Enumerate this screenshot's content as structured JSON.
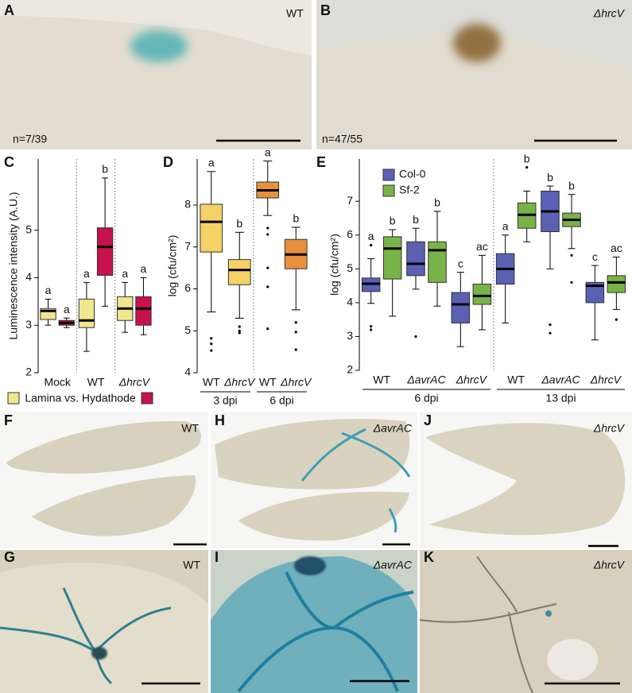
{
  "photos": [
    {
      "letter": "A",
      "label": "WT",
      "note": "n=7/39"
    },
    {
      "letter": "B",
      "label": "ΔhrcV",
      "note": "n=47/55"
    },
    {
      "letter": "F",
      "label": "WT"
    },
    {
      "letter": "H",
      "label": "ΔavrAC"
    },
    {
      "letter": "J",
      "label": "ΔhrcV"
    },
    {
      "letter": "G",
      "label": "WT"
    },
    {
      "letter": "I",
      "label": "ΔavrAC"
    },
    {
      "letter": "K",
      "label": "ΔhrcV"
    }
  ],
  "chart_data": [
    {
      "type": "box",
      "panel": "C",
      "y_label": "Luminescence intensity (A.U.)",
      "ylim": [
        2,
        6.5
      ],
      "yticks": [
        2,
        3,
        4,
        5
      ],
      "legend": {
        "text": "Lamina vs. Hydathode",
        "colors": [
          "#f0e68c",
          "#c8124c"
        ]
      },
      "groups": [
        {
          "categories": [
            {
              "label": "Mock",
              "boxes": [
                {
                  "color": "#f0e68c",
                  "min": 3.0,
                  "q1": 3.12,
                  "median": 3.3,
                  "q3": 3.35,
                  "max": 3.55,
                  "letter": "a"
                },
                {
                  "color": "#c8124c",
                  "min": 2.95,
                  "q1": 3.0,
                  "median": 3.05,
                  "q3": 3.1,
                  "max": 3.15,
                  "letter": "a"
                }
              ]
            }
          ]
        },
        {
          "categories": [
            {
              "label": "WT",
              "boxes": [
                {
                  "color": "#f0e68c",
                  "min": 2.45,
                  "q1": 2.95,
                  "median": 3.1,
                  "q3": 3.55,
                  "max": 3.9,
                  "letter": "a"
                },
                {
                  "color": "#c8124c",
                  "min": 3.4,
                  "q1": 4.05,
                  "median": 4.65,
                  "q3": 5.05,
                  "max": 6.1,
                  "letter": "b"
                }
              ]
            }
          ]
        },
        {
          "categories": [
            {
              "label": "ΔhrcV",
              "boxes": [
                {
                  "color": "#f0e68c",
                  "min": 2.85,
                  "q1": 3.1,
                  "median": 3.35,
                  "q3": 3.6,
                  "max": 3.9,
                  "letter": "a"
                },
                {
                  "color": "#c8124c",
                  "min": 2.8,
                  "q1": 3.0,
                  "median": 3.35,
                  "q3": 3.6,
                  "max": 4.0,
                  "letter": "a"
                }
              ]
            }
          ]
        }
      ]
    },
    {
      "type": "box",
      "panel": "D",
      "y_label": "log (cfu/cm²)",
      "ylim": [
        4,
        9.1
      ],
      "yticks": [
        4,
        5,
        6,
        7,
        8
      ],
      "groups": [
        {
          "label": "3 dpi",
          "categories": [
            {
              "label": "WT",
              "boxes": [
                {
                  "color": "#f5d166",
                  "min": 5.45,
                  "q1": 6.88,
                  "median": 7.6,
                  "q3": 8.02,
                  "max": 8.8,
                  "outliers": [
                    4.82,
                    4.69,
                    4.53
                  ],
                  "letter": "a"
                }
              ]
            },
            {
              "label": "ΔhrcV",
              "boxes": [
                {
                  "color": "#f5d166",
                  "min": 5.3,
                  "q1": 6.1,
                  "median": 6.45,
                  "q3": 6.7,
                  "max": 7.35,
                  "outliers": [
                    5.1,
                    5.0,
                    4.95
                  ],
                  "letter": "b"
                }
              ]
            }
          ]
        },
        {
          "label": "6 dpi",
          "categories": [
            {
              "label": "WT",
              "boxes": [
                {
                  "color": "#e8903c",
                  "min": 7.75,
                  "q1": 8.17,
                  "median": 8.35,
                  "q3": 8.55,
                  "max": 9.05,
                  "outliers": [
                    7.45,
                    7.3,
                    6.5,
                    6.05,
                    5.05
                  ],
                  "letter": "a"
                }
              ]
            },
            {
              "label": "ΔhrcV",
              "boxes": [
                {
                  "color": "#e8903c",
                  "min": 5.5,
                  "q1": 6.48,
                  "median": 6.82,
                  "q3": 7.18,
                  "max": 7.47,
                  "outliers": [
                    5.2,
                    4.97,
                    4.55
                  ],
                  "letter": "b"
                }
              ]
            }
          ]
        }
      ]
    },
    {
      "type": "box",
      "panel": "E",
      "y_label": "log (cfu/cm²)",
      "ylim": [
        2,
        8.25
      ],
      "yticks": [
        2,
        3,
        4,
        5,
        6,
        7
      ],
      "series_legend": [
        {
          "name": "Col-0",
          "color": "#5a60b4"
        },
        {
          "name": "Sf-2",
          "color": "#78b347"
        }
      ],
      "groups": [
        {
          "label": "6 dpi",
          "categories": [
            {
              "label": "WT",
              "boxes": [
                {
                  "color": "#5a60b4",
                  "min": 3.98,
                  "q1": 4.33,
                  "median": 4.56,
                  "q3": 4.73,
                  "max": 5.3,
                  "outliers": [
                    5.7,
                    3.3,
                    3.2
                  ],
                  "letter": "a"
                },
                {
                  "color": "#78b347",
                  "min": 3.6,
                  "q1": 4.7,
                  "median": 5.6,
                  "q3": 5.95,
                  "max": 6.16,
                  "letter": "b"
                }
              ]
            },
            {
              "label": "ΔavrAC",
              "boxes": [
                {
                  "color": "#5a60b4",
                  "min": 4.4,
                  "q1": 4.8,
                  "median": 5.15,
                  "q3": 5.8,
                  "max": 6.2,
                  "outliers": [
                    3.0
                  ],
                  "letter": "b"
                },
                {
                  "color": "#78b347",
                  "min": 3.9,
                  "q1": 4.6,
                  "median": 5.55,
                  "q3": 5.8,
                  "max": 6.7,
                  "letter": "b"
                }
              ]
            },
            {
              "label": "ΔhrcV",
              "boxes": [
                {
                  "color": "#5a60b4",
                  "min": 2.7,
                  "q1": 3.4,
                  "median": 3.95,
                  "q3": 4.3,
                  "max": 4.9,
                  "letter": "c"
                },
                {
                  "color": "#78b347",
                  "min": 3.2,
                  "q1": 3.95,
                  "median": 4.2,
                  "q3": 4.55,
                  "max": 5.4,
                  "letter": "ac"
                }
              ]
            }
          ]
        },
        {
          "label": "13 dpi",
          "categories": [
            {
              "label": "WT",
              "boxes": [
                {
                  "color": "#5a60b4",
                  "min": 3.4,
                  "q1": 4.55,
                  "median": 5.0,
                  "q3": 5.45,
                  "max": 6.0,
                  "letter": "a"
                },
                {
                  "color": "#78b347",
                  "min": 5.8,
                  "q1": 6.2,
                  "median": 6.6,
                  "q3": 6.95,
                  "max": 7.3,
                  "outliers": [
                    8.0
                  ],
                  "letter": "b"
                }
              ]
            },
            {
              "label": "ΔavrAC",
              "boxes": [
                {
                  "color": "#5a60b4",
                  "min": 5.0,
                  "q1": 6.1,
                  "median": 6.7,
                  "q3": 7.3,
                  "max": 7.45,
                  "outliers": [
                    3.35,
                    3.1
                  ],
                  "letter": "b"
                },
                {
                  "color": "#78b347",
                  "min": 5.6,
                  "q1": 6.25,
                  "median": 6.45,
                  "q3": 6.65,
                  "max": 7.2,
                  "outliers": [
                    5.4,
                    4.6
                  ],
                  "letter": "b"
                }
              ]
            },
            {
              "label": "ΔhrcV",
              "boxes": [
                {
                  "color": "#5a60b4",
                  "min": 2.9,
                  "q1": 4.0,
                  "median": 4.5,
                  "q3": 4.6,
                  "max": 5.1,
                  "letter": "c"
                },
                {
                  "color": "#78b347",
                  "min": 3.8,
                  "q1": 4.3,
                  "median": 4.6,
                  "q3": 4.8,
                  "max": 5.35,
                  "outliers": [
                    3.5
                  ],
                  "letter": "ac"
                }
              ]
            }
          ]
        }
      ]
    }
  ]
}
